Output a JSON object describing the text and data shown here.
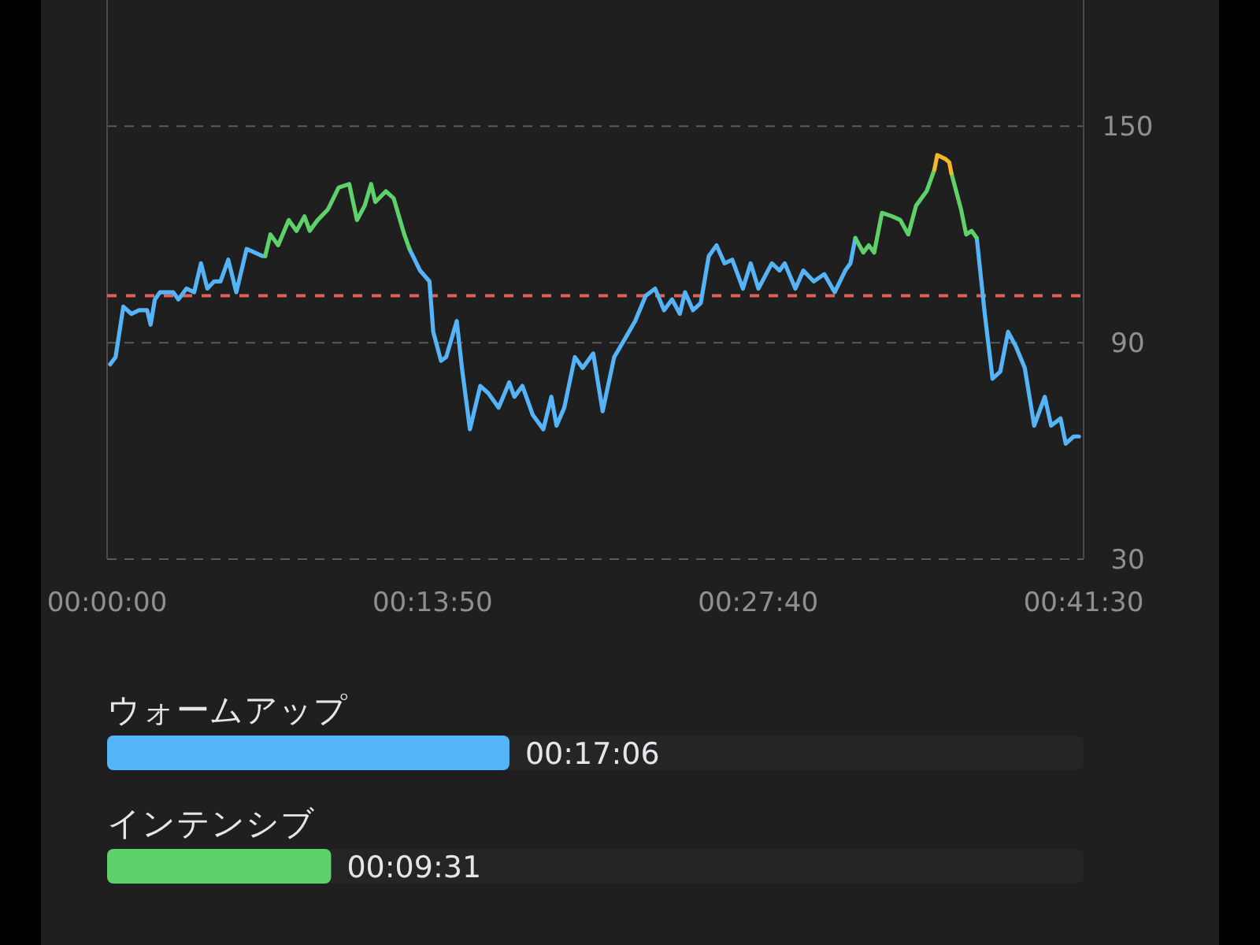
{
  "chart_data": [
    {
      "type": "line",
      "xlim": [
        0,
        41.5
      ],
      "ylim": [
        30,
        185
      ],
      "xticks": [
        {
          "value": 0,
          "label": "00:00:00"
        },
        {
          "value": 13.833,
          "label": "00:13:50"
        },
        {
          "value": 27.667,
          "label": "00:27:40"
        },
        {
          "value": 41.5,
          "label": "00:41:30"
        }
      ],
      "yticks": [
        30,
        90,
        150
      ],
      "grid": "y",
      "marker": "none",
      "line_style": "solid",
      "ref_lines": [
        {
          "axis": "y",
          "value": 103,
          "color": "#e0605a",
          "line_style": "dashed"
        }
      ],
      "series": [
        {
          "color": "#55b4f8",
          "x": [
            0.13,
            0.36,
            0.69,
            1.03,
            1.36,
            1.7,
            1.85,
            2.03,
            2.25,
            2.81,
            3.03,
            3.37,
            3.7,
            3.99,
            4.26,
            4.55,
            4.82,
            5.15,
            5.49,
            5.93,
            6.27,
            6.6,
            6.72,
            null,
            12.85,
            13.3,
            13.7,
            13.86,
            14.19,
            14.41,
            14.86,
            15.08,
            15.42,
            15.86,
            16.2,
            16.64,
            17.09,
            17.31,
            17.65,
            18.09,
            18.54,
            18.88,
            19.1,
            19.43,
            19.88,
            20.21,
            20.66,
            21.06,
            21.55,
            22.0,
            22.44,
            22.89,
            23.29,
            23.67,
            24.01,
            24.34,
            24.56,
            24.9,
            25.23,
            25.57,
            25.9,
            26.24,
            26.57,
            27.02,
            27.35,
            27.68,
            28.25,
            28.58,
            28.8,
            29.25,
            29.59,
            30.03,
            30.48,
            30.92,
            31.37,
            31.59,
            31.8,
            null,
            36.96,
            37.3,
            37.63,
            37.96,
            38.29,
            38.62,
            39.0,
            39.4,
            39.85,
            40.12,
            40.52,
            40.74,
            41.08,
            41.3
          ],
          "values": [
            84,
            86,
            100,
            98,
            99,
            99,
            95,
            102,
            104,
            104,
            102,
            105,
            104,
            112,
            105,
            107,
            107,
            113,
            104,
            116,
            115,
            114,
            114,
            null,
            116,
            110,
            107,
            93,
            85,
            86,
            96,
            83,
            66,
            78,
            76,
            72,
            79,
            75,
            78,
            70,
            66,
            75,
            67,
            72,
            86,
            83,
            87,
            71,
            86,
            91,
            96,
            103,
            105,
            99,
            102,
            98,
            104,
            99,
            101,
            114,
            117,
            112,
            113,
            105,
            112,
            105,
            112,
            110,
            112,
            105,
            110,
            107,
            109,
            104,
            110,
            112,
            119,
            null,
            119,
            98,
            80,
            82,
            93,
            89,
            83,
            67,
            75,
            67,
            69,
            62,
            64,
            64
          ]
        },
        {
          "color": "#5fd16a",
          "x": [
            6.72,
            6.94,
            7.27,
            7.72,
            8.05,
            8.39,
            8.61,
            8.95,
            9.39,
            9.84,
            10.29,
            10.62,
            10.95,
            11.22,
            11.4,
            11.85,
            12.18,
            12.63,
            12.85,
            null,
            31.8,
            32.14,
            32.37,
            32.6,
            32.93,
            33.38,
            33.71,
            34.05,
            34.38,
            34.83,
            35.16,
            null,
            35.88,
            36.29,
            36.51,
            36.74,
            36.96
          ],
          "values": [
            114,
            120,
            117,
            124,
            121,
            125,
            121,
            124,
            127,
            133,
            134,
            124,
            128,
            134,
            129,
            132,
            130,
            120,
            116,
            null,
            119,
            115,
            117,
            115,
            126,
            125,
            124,
            120,
            128,
            132,
            138,
            null,
            137,
            127,
            120,
            121,
            119
          ]
        },
        {
          "color": "#f5b62a",
          "x": [
            35.16,
            35.28,
            35.61,
            35.79,
            35.88
          ],
          "values": [
            138,
            142,
            141,
            140,
            137
          ]
        }
      ]
    },
    {
      "type": "bar",
      "orientation": "horizontal",
      "categories": [
        "ウォームアップ",
        "インテンシブ"
      ],
      "values": [
        17.1,
        9.52
      ],
      "colors": [
        "#55b4f8",
        "#5fd16a"
      ],
      "value_labels": [
        "00:17:06",
        "00:09:31"
      ],
      "xlim": [
        0,
        41.5
      ],
      "tick_labels": "y"
    }
  ]
}
